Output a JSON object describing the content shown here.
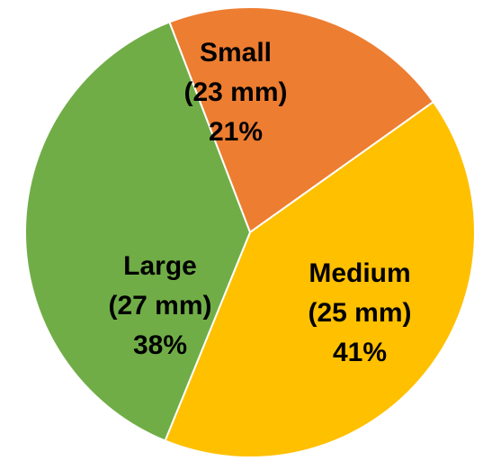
{
  "chart_data": {
    "type": "pie",
    "title": "",
    "slices": [
      {
        "name": "Small",
        "size": "(23 mm)",
        "percent_label": "21%",
        "value": 21,
        "color": "#ED7D31"
      },
      {
        "name": "Medium",
        "size": "(25 mm)",
        "percent_label": "41%",
        "value": 41,
        "color": "#FFC000"
      },
      {
        "name": "Large",
        "size": "(27 mm)",
        "percent_label": "38%",
        "value": 38,
        "color": "#70AD47"
      }
    ],
    "start_angle_deg": -21,
    "direction": "clockwise",
    "legend": "none",
    "slice_border_color": "#FFFFFF"
  }
}
